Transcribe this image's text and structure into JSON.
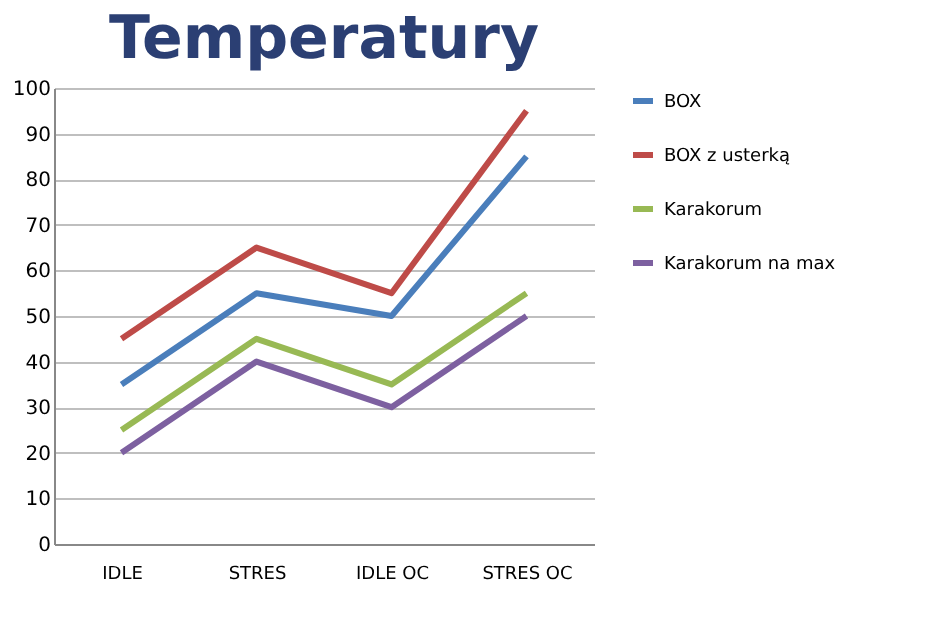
{
  "chart_data": {
    "type": "line",
    "title": "Temperatury",
    "categories": [
      "IDLE",
      "STRES",
      "IDLE OC",
      "STRES OC"
    ],
    "series": [
      {
        "name": "BOX",
        "color": "#4a7ebb",
        "values": [
          35,
          55,
          50,
          85
        ]
      },
      {
        "name": "BOX z usterką",
        "color": "#be4b48",
        "values": [
          45,
          65,
          55,
          95
        ]
      },
      {
        "name": "Karakorum",
        "color": "#98b954",
        "values": [
          25,
          45,
          35,
          55
        ]
      },
      {
        "name": "Karakorum na max",
        "color": "#7d60a0",
        "values": [
          20,
          40,
          30,
          50
        ]
      }
    ],
    "ylim": [
      0,
      100
    ],
    "yticks": [
      0,
      10,
      20,
      30,
      40,
      50,
      60,
      70,
      80,
      90,
      100
    ],
    "grid": "y",
    "legend": "right",
    "marker": "none",
    "line_style": "solid"
  }
}
